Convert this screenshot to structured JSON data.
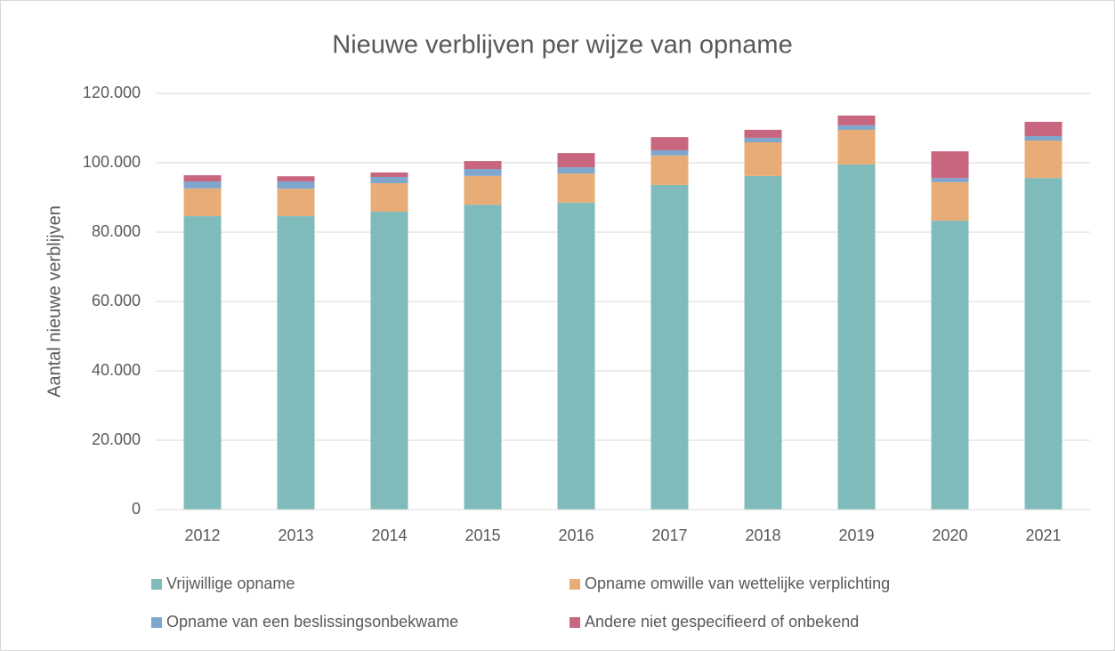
{
  "chart_data": {
    "type": "stacked_bar",
    "title": "Nieuwe verblijven per wijze van opname",
    "y_label": "Aantal nieuwe verblijven",
    "categories": [
      "2012",
      "2013",
      "2014",
      "2015",
      "2016",
      "2017",
      "2018",
      "2019",
      "2020",
      "2021"
    ],
    "series": [
      {
        "name": "Vrijwillige opname",
        "color": "#7fbbbb",
        "values": [
          84600,
          84600,
          85900,
          87900,
          88500,
          93600,
          96200,
          99500,
          83300,
          95600
        ]
      },
      {
        "name": "Opname omwille van wettelijke verplichting",
        "color": "#e8ad76",
        "values": [
          8000,
          7900,
          8200,
          8300,
          8400,
          8500,
          9700,
          10000,
          11100,
          10800
        ]
      },
      {
        "name": "Opname van een beslissingsonbekwame",
        "color": "#7fa6cc",
        "values": [
          2000,
          2100,
          1800,
          2000,
          1800,
          1500,
          1300,
          1300,
          1200,
          1300
        ]
      },
      {
        "name": "Andere niet gespecifieerd of onbekend",
        "color": "#c9667f",
        "values": [
          1800,
          1500,
          1300,
          2300,
          4100,
          3800,
          2300,
          2800,
          7700,
          4100
        ]
      }
    ],
    "ylim": [
      0,
      120000
    ],
    "yticks": [
      0,
      {
        "value": 20000,
        "label": "20.000"
      },
      {
        "value": 40000,
        "label": "40.000"
      },
      {
        "value": 60000,
        "label": "60.000"
      },
      {
        "value": 80000,
        "label": "80.000"
      },
      {
        "value": 100000,
        "label": "100.000"
      },
      {
        "value": 120000,
        "label": "120.000"
      }
    ],
    "grid": true
  }
}
